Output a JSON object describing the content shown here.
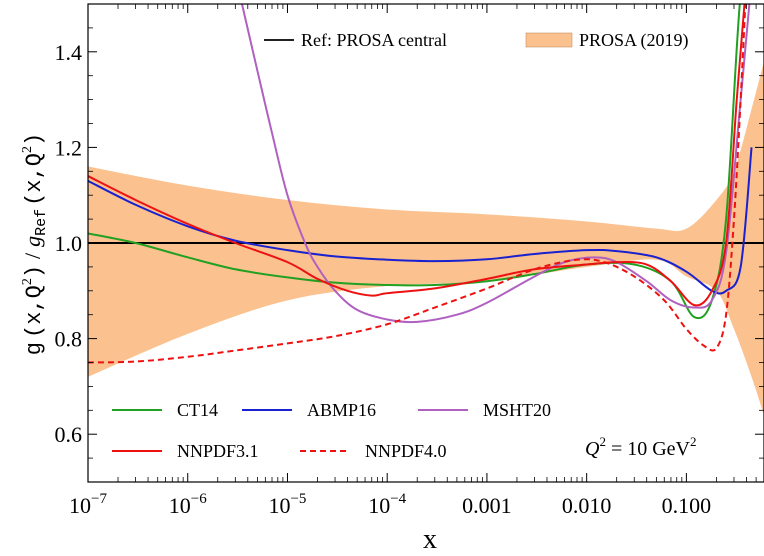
{
  "chart_data": {
    "type": "line",
    "xlabel": "x",
    "ylabel": {
      "prefix": "g",
      "num_args": "(x,Q",
      "num_sup": "2",
      "num_close": ")",
      "slash": "/",
      "denom_g": "g",
      "denom_sub": "Ref",
      "denom_args": "(x,Q",
      "denom_sup": "2",
      "denom_close": ")"
    },
    "x_scale": "log",
    "xlim": [
      1e-07,
      0.6
    ],
    "ylim": [
      0.5,
      1.5
    ],
    "grid": false,
    "x_ticks": [
      {
        "value": 1e-07,
        "base": "10",
        "exp": "−7"
      },
      {
        "value": 1e-06,
        "base": "10",
        "exp": "−6"
      },
      {
        "value": 1e-05,
        "base": "10",
        "exp": "−5"
      },
      {
        "value": 0.0001,
        "base": "10",
        "exp": "−4"
      },
      {
        "value": 0.001,
        "base": "0.001",
        "exp": ""
      },
      {
        "value": 0.01,
        "base": "0.010",
        "exp": ""
      },
      {
        "value": 0.1,
        "base": "0.100",
        "exp": ""
      }
    ],
    "y_ticks": [
      {
        "value": 0.6,
        "label": "0.6"
      },
      {
        "value": 0.8,
        "label": "0.8"
      },
      {
        "value": 1.0,
        "label": "1.0"
      },
      {
        "value": 1.2,
        "label": "1.2"
      },
      {
        "value": 1.4,
        "label": "1.4"
      }
    ],
    "reference": {
      "name": "Ref: PROSA central",
      "value": 1.0,
      "color": "#000000"
    },
    "band": {
      "name": "PROSA (2019)",
      "color": "#FBC18E",
      "x": [
        1e-07,
        1e-06,
        1e-05,
        0.0001,
        0.001,
        0.01,
        0.05,
        0.1,
        0.2,
        0.3,
        0.45,
        0.6
      ],
      "upper": [
        1.16,
        1.12,
        1.09,
        1.07,
        1.06,
        1.045,
        1.03,
        1.03,
        1.09,
        1.15,
        1.28,
        1.38
      ],
      "lower": [
        0.72,
        0.81,
        0.88,
        0.91,
        0.92,
        0.95,
        0.965,
        0.93,
        0.9,
        0.82,
        0.72,
        0.64
      ]
    },
    "annotation": {
      "text": "Q",
      "sup": "2",
      "rest": " = 10 GeV",
      "sup2": "2"
    },
    "series": [
      {
        "name": "CT14",
        "color": "#22A022",
        "dash": "solid",
        "x": [
          1e-07,
          3e-07,
          1e-06,
          3e-06,
          1e-05,
          3e-05,
          0.0001,
          0.0003,
          0.001,
          0.003,
          0.01,
          0.03,
          0.07,
          0.12,
          0.18,
          0.25,
          0.35,
          0.45
        ],
        "y": [
          1.02,
          1.0,
          0.97,
          0.945,
          0.928,
          0.917,
          0.912,
          0.912,
          0.92,
          0.935,
          0.955,
          0.955,
          0.92,
          0.845,
          0.88,
          1.05,
          1.52,
          1.55
        ]
      },
      {
        "name": "ABMP16",
        "color": "#1A22D0",
        "dash": "solid",
        "x": [
          1e-07,
          3e-07,
          1e-06,
          3e-06,
          1e-05,
          3e-05,
          0.0001,
          0.0003,
          0.001,
          0.003,
          0.01,
          0.02,
          0.05,
          0.1,
          0.18,
          0.25,
          0.35,
          0.45
        ],
        "y": [
          1.13,
          1.08,
          1.035,
          1.005,
          0.985,
          0.972,
          0.965,
          0.962,
          0.966,
          0.977,
          0.985,
          0.983,
          0.97,
          0.94,
          0.9,
          0.9,
          0.95,
          1.2
        ]
      },
      {
        "name": "MSHT20",
        "color": "#B060C0",
        "dash": "solid",
        "x": [
          3.5e-06,
          5e-06,
          7e-06,
          1e-05,
          1.5e-05,
          2e-05,
          3e-05,
          5e-05,
          0.0001,
          0.0002,
          0.0005,
          0.001,
          0.003,
          0.006,
          0.012,
          0.02,
          0.04,
          0.07,
          0.12,
          0.18,
          0.25,
          0.35,
          0.45
        ],
        "y": [
          1.5,
          1.36,
          1.23,
          1.1,
          1.0,
          0.95,
          0.9,
          0.86,
          0.84,
          0.835,
          0.85,
          0.875,
          0.93,
          0.96,
          0.97,
          0.96,
          0.92,
          0.88,
          0.865,
          0.88,
          0.98,
          1.3,
          1.55
        ]
      },
      {
        "name": "NNPDF3.1",
        "color": "#EE1111",
        "dash": "solid",
        "x": [
          1e-07,
          3e-07,
          1e-06,
          3e-06,
          1e-05,
          2e-05,
          4e-05,
          7e-05,
          0.0001,
          0.0003,
          0.001,
          0.003,
          0.01,
          0.02,
          0.04,
          0.07,
          0.12,
          0.18,
          0.25,
          0.32,
          0.4
        ],
        "y": [
          1.14,
          1.09,
          1.04,
          1.0,
          0.96,
          0.925,
          0.9,
          0.89,
          0.895,
          0.905,
          0.925,
          0.945,
          0.955,
          0.96,
          0.955,
          0.92,
          0.87,
          0.9,
          1.0,
          1.3,
          1.55
        ]
      },
      {
        "name": "NNPDF4.0",
        "color": "#EE1111",
        "dash": "dashed",
        "x": [
          1e-07,
          3e-07,
          1e-06,
          3e-06,
          1e-05,
          3e-05,
          0.0001,
          0.0003,
          0.001,
          0.003,
          0.008,
          0.015,
          0.03,
          0.06,
          0.1,
          0.15,
          0.2,
          0.25,
          0.3,
          0.35,
          0.4
        ],
        "y": [
          0.75,
          0.752,
          0.762,
          0.775,
          0.79,
          0.805,
          0.83,
          0.865,
          0.905,
          0.945,
          0.965,
          0.96,
          0.93,
          0.88,
          0.82,
          0.785,
          0.78,
          0.85,
          1.05,
          1.3,
          1.55
        ]
      }
    ]
  }
}
